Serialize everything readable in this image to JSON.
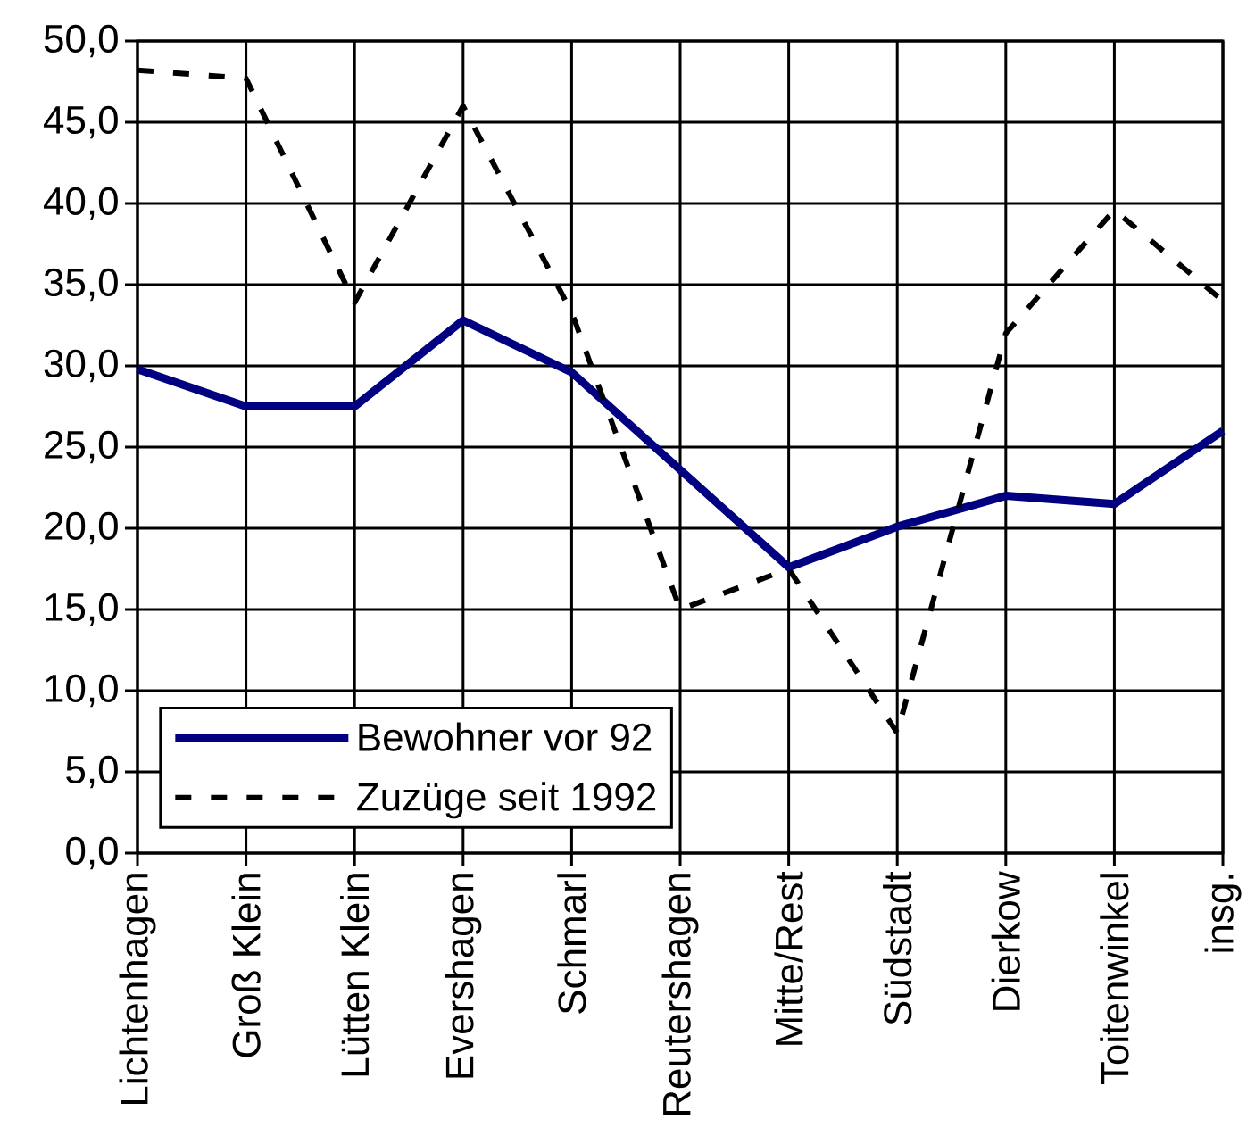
{
  "chart_data": {
    "type": "line",
    "categories": [
      "Lichtenhagen",
      "Groß Klein",
      "Lütten Klein",
      "Evershagen",
      "Schmarl",
      "Reutershagen",
      "Mitte/Rest",
      "Südstadt",
      "Dierkow",
      "Toitenwinkel",
      "insg."
    ],
    "series": [
      {
        "name": "Bewohner vor 92",
        "color": "#000080",
        "line_style": "solid",
        "values": [
          29.8,
          27.5,
          27.5,
          32.8,
          29.6,
          23.6,
          17.6,
          20.1,
          22.0,
          21.5,
          26.0
        ]
      },
      {
        "name": "Zuzüge seit 1992",
        "color": "#000000",
        "line_style": "dashed",
        "values": [
          48.2,
          47.7,
          33.9,
          46.0,
          33.3,
          15.0,
          17.5,
          7.4,
          32.0,
          39.6,
          34.0
        ]
      }
    ],
    "ylim": [
      0,
      50
    ],
    "yticks": [
      {
        "value": 0,
        "label": "0,0"
      },
      {
        "value": 5,
        "label": "5,0"
      },
      {
        "value": 10,
        "label": "10,0"
      },
      {
        "value": 15,
        "label": "15,0"
      },
      {
        "value": 20,
        "label": "20,0"
      },
      {
        "value": 25,
        "label": "25,0"
      },
      {
        "value": 30,
        "label": "30,0"
      },
      {
        "value": 35,
        "label": "35,0"
      },
      {
        "value": 40,
        "label": "40,0"
      },
      {
        "value": 45,
        "label": "45,0"
      },
      {
        "value": 50,
        "label": "50,0"
      }
    ],
    "grid": true,
    "legend": "bottom left"
  }
}
